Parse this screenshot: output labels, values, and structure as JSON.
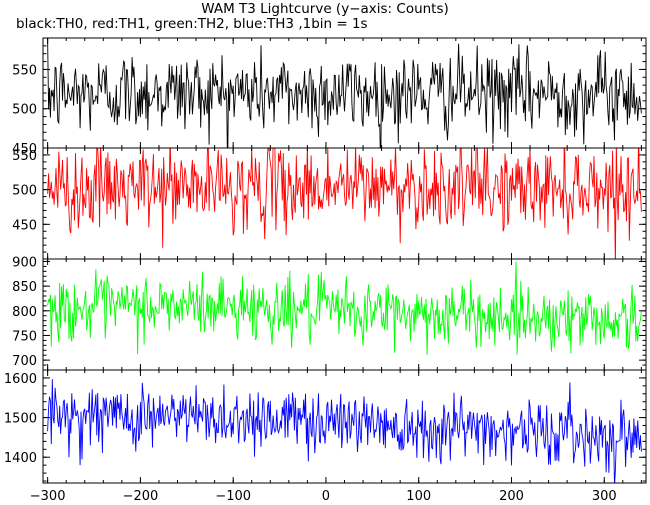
{
  "chart_data": {
    "type": "line",
    "title": "WAM T3 Lightcurve (y−axis: Counts)",
    "subtitle": "black:TH0, red:TH1, green:TH2, blue:TH3 ,1bin = 1s",
    "xlim": [
      -305,
      345
    ],
    "x_ticks": [
      -300,
      -200,
      -100,
      0,
      100,
      200,
      300
    ],
    "x_tick_labels": [
      "−300",
      "−200",
      "−100",
      "0",
      "100",
      "200",
      "300"
    ],
    "bin_seconds": 1,
    "panels": [
      {
        "name": "TH0",
        "color": "#000000",
        "ylim": [
          450,
          590
        ],
        "y_ticks": [
          450,
          500,
          550
        ],
        "mean": 520,
        "std": 26,
        "trend": [
          [
            -300,
            518
          ],
          [
            -200,
            522
          ],
          [
            -100,
            521
          ],
          [
            0,
            520
          ],
          [
            100,
            520
          ],
          [
            200,
            520
          ],
          [
            300,
            520
          ],
          [
            340,
            520
          ]
        ]
      },
      {
        "name": "TH1",
        "color": "#ff0000",
        "ylim": [
          400,
          560
        ],
        "y_ticks": [
          450,
          500,
          550
        ],
        "mean": 503,
        "std": 30,
        "trend": [
          [
            -300,
            500
          ],
          [
            -200,
            502
          ],
          [
            -100,
            504
          ],
          [
            0,
            505
          ],
          [
            100,
            505
          ],
          [
            200,
            502
          ],
          [
            300,
            505
          ],
          [
            340,
            500
          ]
        ]
      },
      {
        "name": "TH2",
        "color": "#00ff00",
        "ylim": [
          680,
          905
        ],
        "y_ticks": [
          700,
          750,
          800,
          850,
          900
        ],
        "mean": 800,
        "std": 32,
        "trend": [
          [
            -300,
            803
          ],
          [
            -200,
            808
          ],
          [
            -100,
            810
          ],
          [
            0,
            800
          ],
          [
            100,
            795
          ],
          [
            200,
            790
          ],
          [
            300,
            785
          ],
          [
            340,
            780
          ]
        ]
      },
      {
        "name": "TH3",
        "color": "#0000ff",
        "ylim": [
          1335,
          1620
        ],
        "y_ticks": [
          1400,
          1500,
          1600
        ],
        "mean": 1490,
        "std": 40,
        "trend": [
          [
            -300,
            1505
          ],
          [
            -200,
            1505
          ],
          [
            -100,
            1500
          ],
          [
            0,
            1495
          ],
          [
            100,
            1480
          ],
          [
            200,
            1470
          ],
          [
            300,
            1455
          ],
          [
            340,
            1450
          ]
        ]
      }
    ]
  }
}
